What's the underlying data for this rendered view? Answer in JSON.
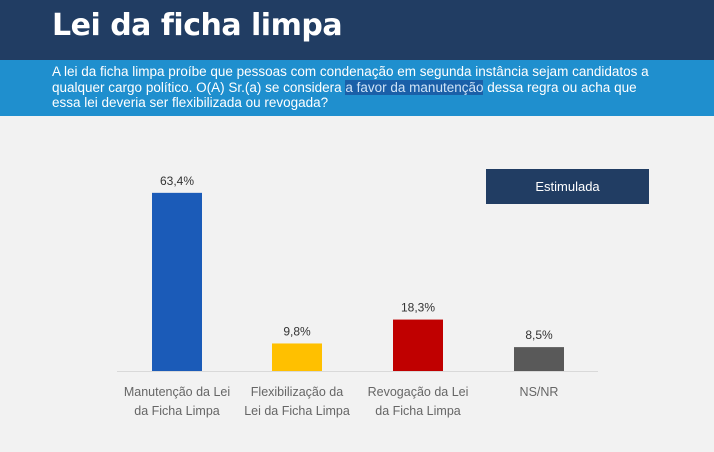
{
  "header": {
    "title": "Lei da ficha limpa"
  },
  "question": {
    "text_before": "A lei da ficha limpa proíbe que pessoas com condenação em segunda instância sejam candidatos a qualquer cargo político. O(A) Sr.(a) se considera ",
    "highlight": "a favor da manutenção",
    "text_after": " dessa regra ou acha que essa lei deveria ser flexibilizada ou revogada?"
  },
  "badge": {
    "label": "Estimulada"
  },
  "colors": {
    "title_bar": "#213d63",
    "question_bar": "#1f8fce"
  },
  "chart_data": {
    "type": "bar",
    "title": "",
    "xlabel": "",
    "ylabel": "",
    "ylim": [
      0,
      70
    ],
    "categories": [
      [
        "Manutenção da Lei",
        "da Ficha Limpa"
      ],
      [
        "Flexibilização da",
        "Lei da Ficha Limpa"
      ],
      [
        "Revogação da Lei",
        "da Ficha Limpa"
      ],
      [
        "NS/NR"
      ]
    ],
    "values": [
      63.4,
      9.8,
      18.3,
      8.5
    ],
    "value_labels": [
      "63,4%",
      "9,8%",
      "18,3%",
      "8,5%"
    ],
    "colors": [
      "#1b5bb8",
      "#ffc000",
      "#c00000",
      "#595959"
    ]
  }
}
